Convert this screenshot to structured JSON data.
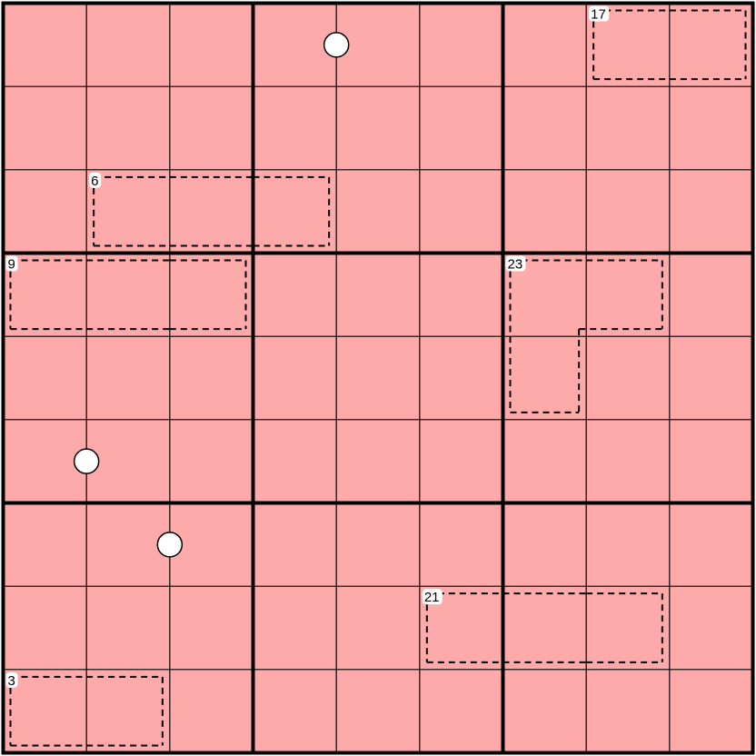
{
  "puzzle": {
    "type": "killer sudoku",
    "size": 9,
    "cell_color": "#ffaaaa",
    "line_color": "#000000",
    "dot_color": "#ffffff",
    "cages": [
      {
        "sum": "17",
        "cells": [
          [
            0,
            7
          ],
          [
            0,
            8
          ]
        ]
      },
      {
        "sum": "6",
        "cells": [
          [
            2,
            1
          ],
          [
            2,
            2
          ],
          [
            2,
            3
          ]
        ]
      },
      {
        "sum": "9",
        "cells": [
          [
            3,
            0
          ],
          [
            3,
            1
          ],
          [
            3,
            2
          ]
        ]
      },
      {
        "sum": "23",
        "cells": [
          [
            3,
            6
          ],
          [
            3,
            7
          ],
          [
            4,
            6
          ]
        ]
      },
      {
        "sum": "21",
        "cells": [
          [
            7,
            5
          ],
          [
            7,
            6
          ],
          [
            7,
            7
          ]
        ]
      },
      {
        "sum": "3",
        "cells": [
          [
            8,
            0
          ],
          [
            8,
            1
          ]
        ]
      }
    ],
    "white_dots": [
      {
        "cells": [
          [
            0,
            3
          ],
          [
            0,
            4
          ]
        ]
      },
      {
        "cells": [
          [
            5,
            0
          ],
          [
            5,
            1
          ]
        ]
      },
      {
        "cells": [
          [
            6,
            1
          ],
          [
            6,
            2
          ]
        ]
      }
    ]
  }
}
